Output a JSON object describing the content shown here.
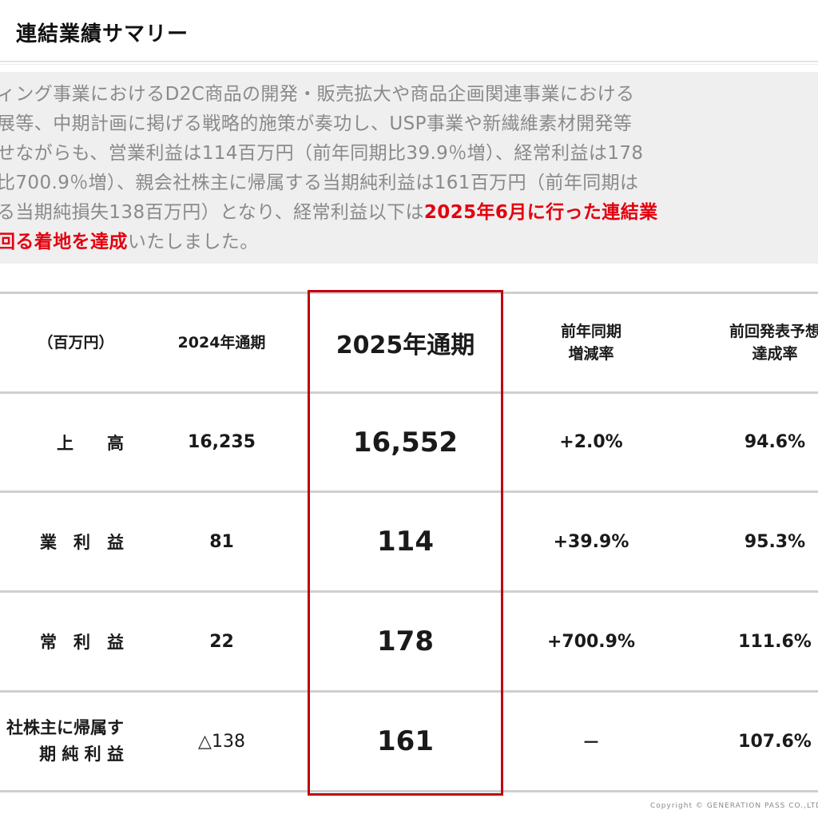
{
  "header": {
    "title": "連結業績サマリー"
  },
  "summary": {
    "lines": [
      "ィング事業におけるD2C商品の開発・販売拡大や商品企画関連事業における",
      "展等、中期計画に掲げる戦略的施策が奏功し、USP事業や新繊維素材開発等",
      "せながらも、営業利益は114百万円（前年同期比39.9％増）、経常利益は178",
      "比700.9％増）、親会社株主に帰属する当期純利益は161百万円（前年同期は",
      "る当期純損失138百万円）となり、経常利益以下は"
    ],
    "line5_red": "2025年6月に行った連結業",
    "line6_red": "回る着地を達成",
    "line6_rest": "いたしました。"
  },
  "table": {
    "header": {
      "unit": "（百万円）",
      "fy2024": "2024年通期",
      "fy2025": "2025年通期",
      "yoy_line1": "前年同期",
      "yoy_line2": "増減率",
      "ach_line1": "前回発表予想",
      "ach_line2": "達成率"
    },
    "rows": [
      {
        "label": "上　　高",
        "fy2024": "16,235",
        "fy2025": "16,552",
        "yoy": "+2.0%",
        "ach": "94.6%"
      },
      {
        "label": "業　利　益",
        "fy2024": "81",
        "fy2025": "114",
        "yoy": "+39.9%",
        "ach": "95.3%"
      },
      {
        "label": "常　利　益",
        "fy2024": "22",
        "fy2025": "178",
        "yoy": "+700.9%",
        "ach": "111.6%"
      },
      {
        "label_line1": "社株主に帰属す",
        "label_line2": "期 純 利 益",
        "fy2024": "△138",
        "fy2025": "161",
        "yoy": "－",
        "ach": "107.6%"
      }
    ]
  },
  "footer": {
    "copyright": "Copyright © GENERATION PASS CO.,LTD"
  },
  "colors": {
    "accent_red": "#e3000f",
    "box_red": "#c0000e",
    "summary_bg": "#efefef"
  }
}
